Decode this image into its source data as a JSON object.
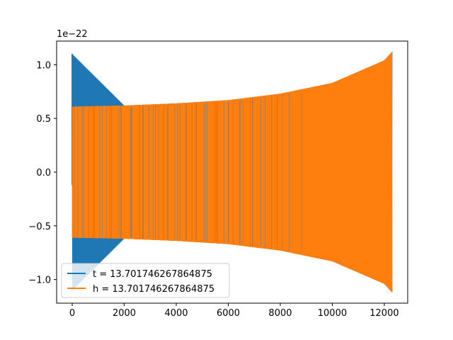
{
  "chart_data": {
    "type": "line",
    "title": "",
    "xlabel": "",
    "ylabel": "",
    "xlim": [
      -600,
      12900
    ],
    "ylim": [
      -1.22e-22,
      1.22e-22
    ],
    "y_offset_text": "1e−22",
    "x_ticks": [
      {
        "value": 0,
        "label": "0"
      },
      {
        "value": 2000,
        "label": "2000"
      },
      {
        "value": 4000,
        "label": "4000"
      },
      {
        "value": 6000,
        "label": "6000"
      },
      {
        "value": 8000,
        "label": "8000"
      },
      {
        "value": 10000,
        "label": "10000"
      },
      {
        "value": 12000,
        "label": "12000"
      }
    ],
    "y_ticks": [
      {
        "value": 1e-22,
        "label": "1.0"
      },
      {
        "value": 5e-23,
        "label": "0.5"
      },
      {
        "value": 0.0,
        "label": "0.0"
      },
      {
        "value": -5e-23,
        "label": "−0.5"
      },
      {
        "value": -1e-22,
        "label": "−1.0"
      }
    ],
    "grid": false,
    "legend_position": "lower-left",
    "series": [
      {
        "name": "t = 13.701746267864875",
        "color": "#1f77b4",
        "envelope": {
          "x": [
            0,
            2000,
            4000,
            6000,
            8000,
            10000,
            12000,
            12300
          ],
          "upper": [
            1.1e-22,
            6.2e-23,
            6.4e-23,
            6.7e-23,
            7.3e-23,
            8.3e-23,
            1.04e-22,
            1.12e-22
          ],
          "lower": [
            -1.1e-22,
            -6.2e-23,
            -6.4e-23,
            -6.7e-23,
            -7.3e-23,
            -8.3e-23,
            -1.04e-22,
            -1.12e-22
          ]
        },
        "spike": {
          "x": 0,
          "max": 1.1e-22,
          "min": -1.2e-23
        }
      },
      {
        "name": "h = 13.701746267864875",
        "color": "#ff7f0e",
        "envelope": {
          "x": [
            0,
            2000,
            4000,
            6000,
            8000,
            10000,
            12000,
            12300
          ],
          "upper": [
            6.1e-23,
            6.2e-23,
            6.4e-23,
            6.7e-23,
            7.3e-23,
            8.3e-23,
            1.04e-22,
            1.12e-22
          ],
          "lower": [
            -6.1e-23,
            -6.2e-23,
            -6.4e-23,
            -6.7e-23,
            -7.3e-23,
            -8.3e-23,
            -1.04e-22,
            -1.12e-22
          ]
        }
      }
    ]
  }
}
